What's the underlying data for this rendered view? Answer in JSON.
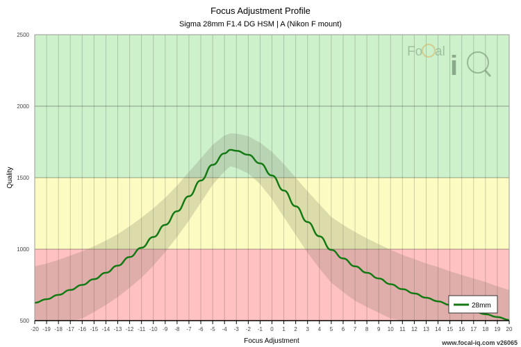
{
  "chart_data": {
    "type": "line",
    "title": "Focus Adjustment Profile",
    "subtitle": "Sigma 28mm F1.4 DG HSM | A (Nikon F mount)",
    "xlabel": "Focus Adjustment",
    "ylabel": "Quality",
    "xlim": [
      -20,
      20
    ],
    "ylim": [
      500,
      2500
    ],
    "yticks": [
      500,
      1000,
      1500,
      2000,
      2500
    ],
    "xticks": [
      -20,
      -19,
      -18,
      -17,
      -16,
      -15,
      -14,
      -13,
      -12,
      -11,
      -10,
      -9,
      -8,
      -7,
      -6,
      -5,
      -4,
      -3,
      -2,
      -1,
      0,
      1,
      2,
      3,
      4,
      5,
      6,
      7,
      8,
      9,
      10,
      11,
      12,
      13,
      14,
      15,
      16,
      17,
      18,
      19,
      20
    ],
    "zones": [
      {
        "from": 1500,
        "to": 2500,
        "color": "#cdf1cb"
      },
      {
        "from": 1000,
        "to": 1500,
        "color": "#fbfbc2"
      },
      {
        "from": 500,
        "to": 1000,
        "color": "#ffc1c1"
      }
    ],
    "series": [
      {
        "name": "28mm",
        "color": "#137a13",
        "x": [
          -20,
          -19,
          -18,
          -17,
          -16,
          -15,
          -14,
          -13,
          -12,
          -11,
          -10,
          -9,
          -8,
          -7,
          -6,
          -5,
          -4,
          -3.5,
          -3,
          -2,
          -1,
          0,
          1,
          2,
          3,
          4,
          5,
          6,
          7,
          8,
          9,
          10,
          11,
          12,
          13,
          14,
          15,
          16,
          17,
          18,
          19,
          20
        ],
        "y": [
          625,
          650,
          680,
          715,
          750,
          790,
          835,
          885,
          945,
          1010,
          1085,
          1170,
          1265,
          1370,
          1480,
          1590,
          1670,
          1695,
          1688,
          1660,
          1600,
          1515,
          1410,
          1300,
          1190,
          1090,
          995,
          935,
          880,
          835,
          795,
          755,
          720,
          690,
          660,
          635,
          610,
          585,
          565,
          545,
          525,
          505
        ]
      }
    ],
    "band_halfwidth": [
      255,
      250,
      245,
      240,
      235,
      230,
      225,
      220,
      215,
      210,
      200,
      190,
      180,
      170,
      155,
      140,
      125,
      115,
      120,
      130,
      145,
      165,
      185,
      200,
      215,
      225,
      230,
      235,
      240,
      240,
      240,
      240,
      240,
      240,
      240,
      240,
      235,
      235,
      230,
      225,
      215,
      210
    ],
    "legend": {
      "position": "bottom-right"
    }
  },
  "watermark": {
    "logo": "FoCal iQ",
    "footer": "www.focal-iq.com  v26065"
  }
}
